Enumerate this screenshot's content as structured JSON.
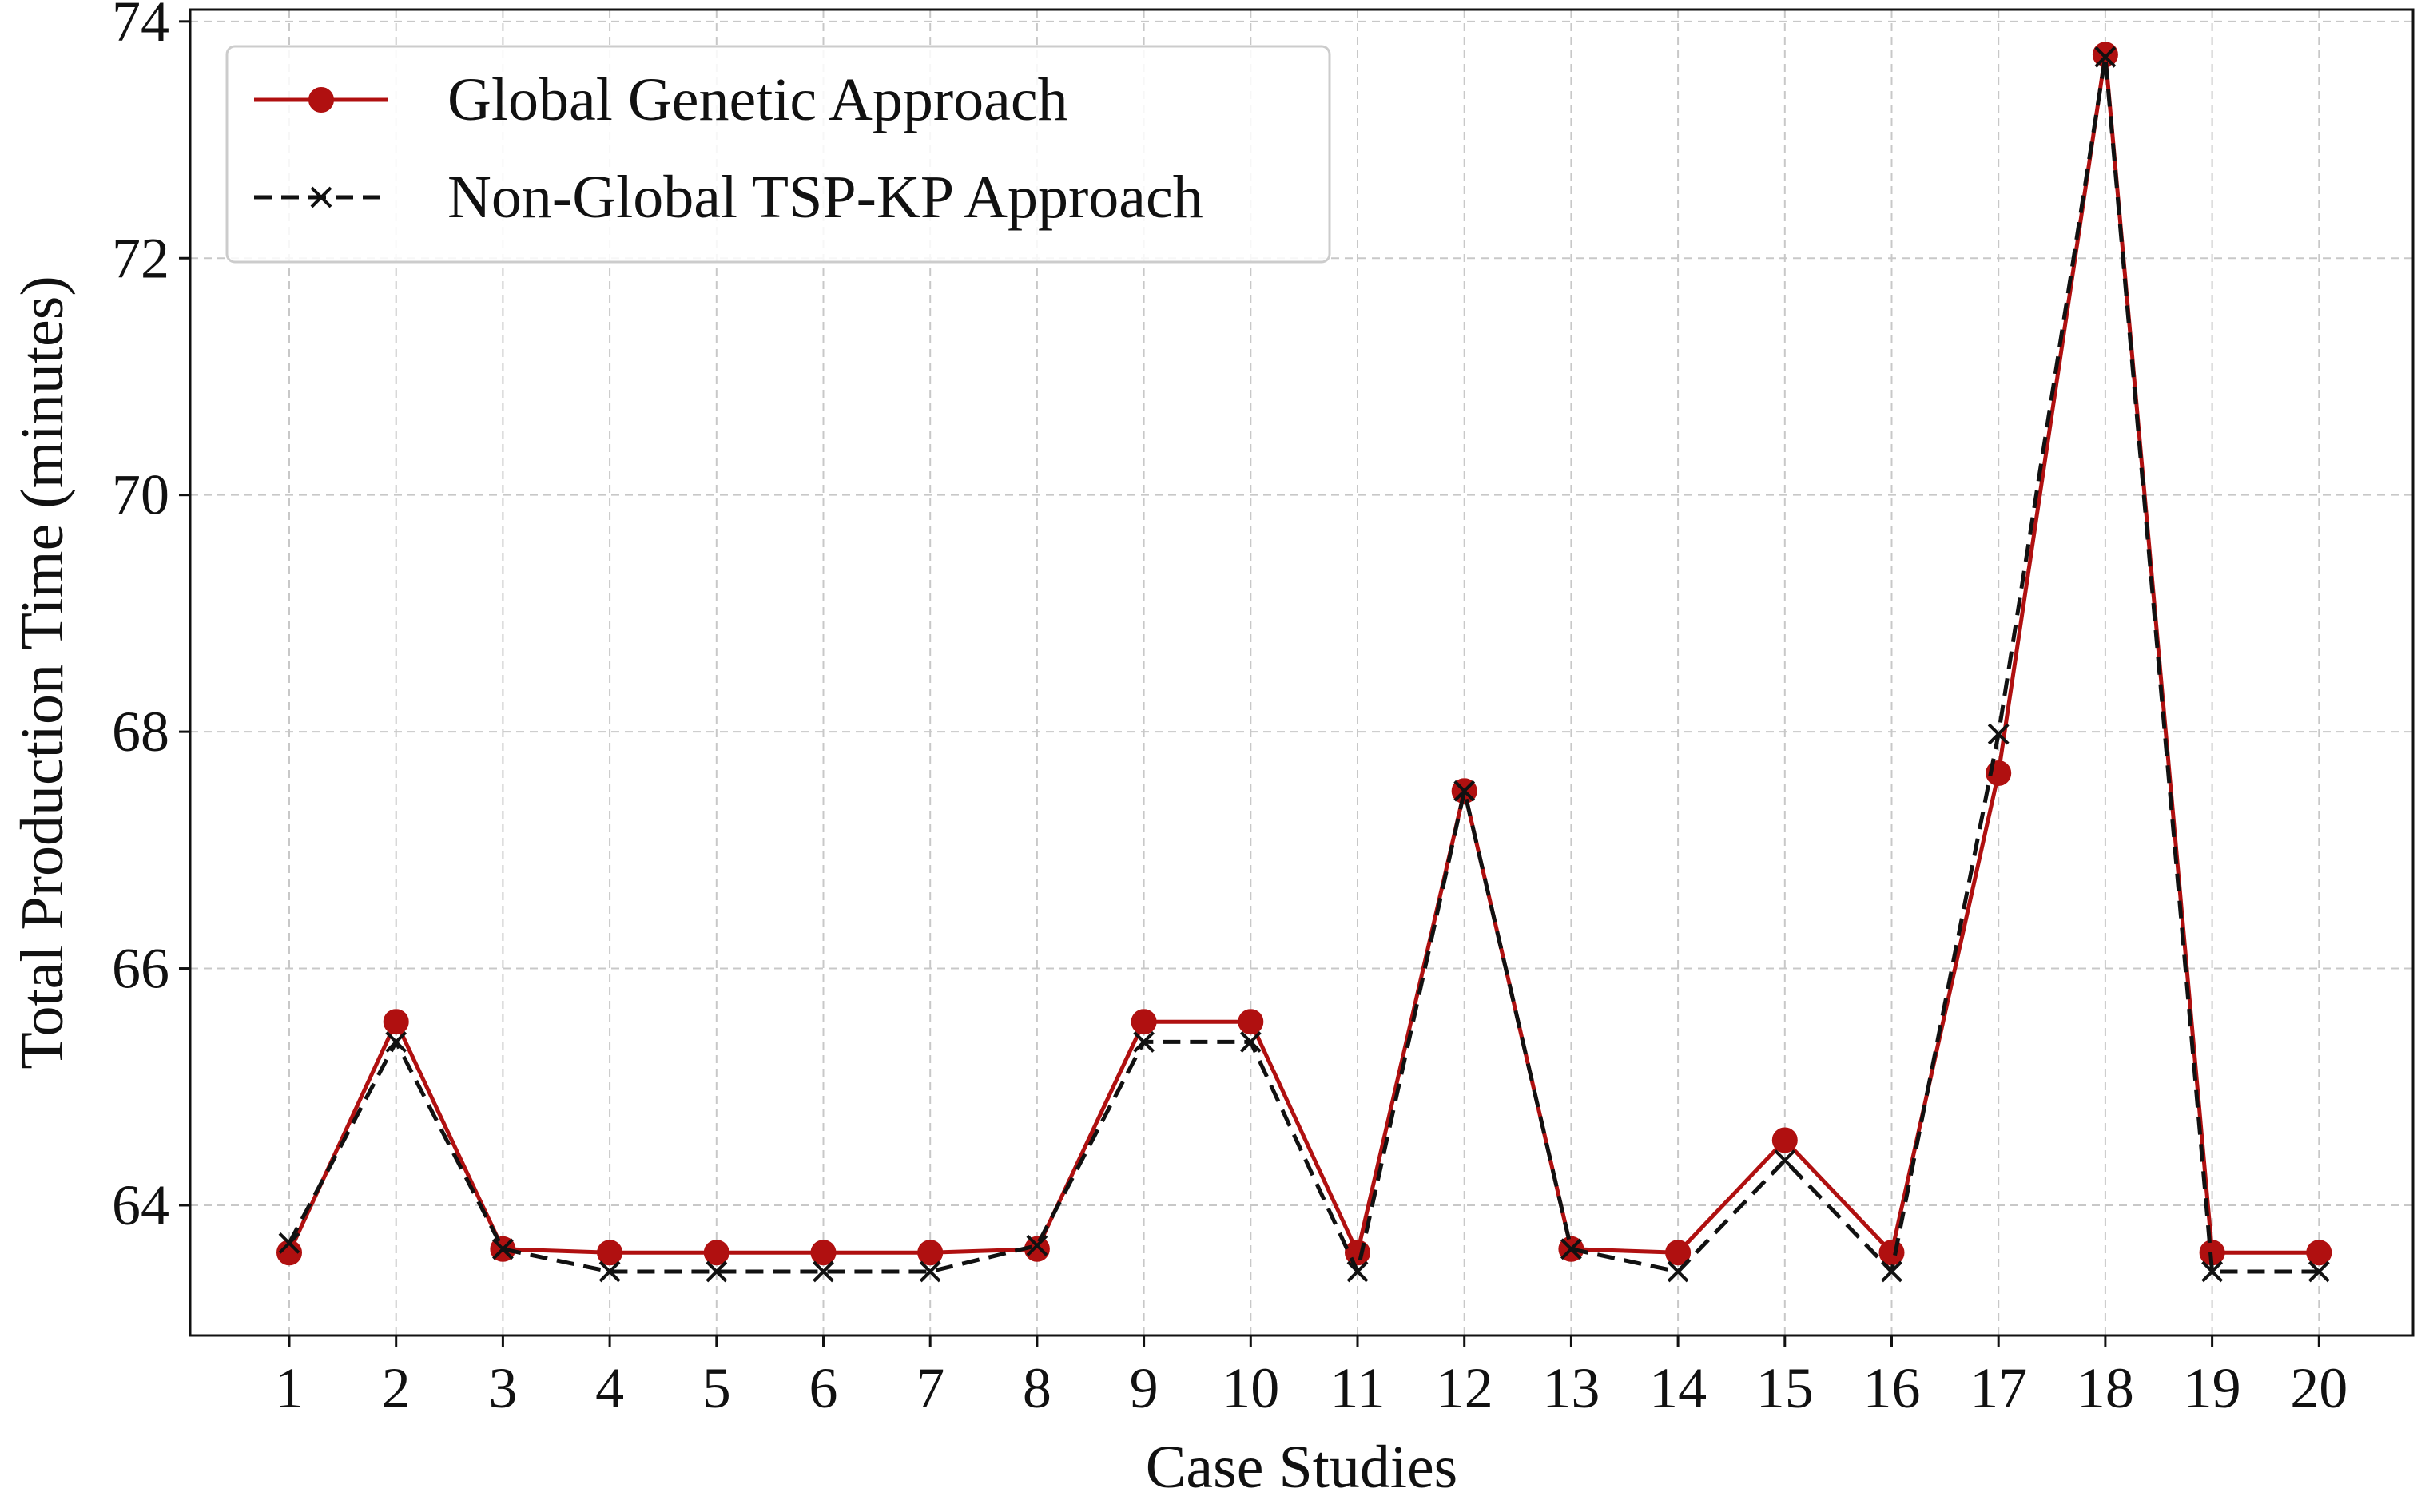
{
  "chart_data": {
    "type": "line",
    "title": "",
    "xlabel": "Case Studies",
    "ylabel": "Total Production Time (minutes)",
    "categories": [
      1,
      2,
      3,
      4,
      5,
      6,
      7,
      8,
      9,
      10,
      11,
      12,
      13,
      14,
      15,
      16,
      17,
      18,
      19,
      20
    ],
    "ylim": [
      62.9,
      74.1
    ],
    "yticks": [
      64,
      66,
      68,
      70,
      72,
      74
    ],
    "grid": true,
    "legend_position": "top-left",
    "series": [
      {
        "name": "Global Genetic Approach",
        "color": "#b01010",
        "line_style": "solid",
        "marker": "circle",
        "values": [
          63.6,
          65.55,
          63.63,
          63.6,
          63.6,
          63.6,
          63.6,
          63.63,
          65.55,
          65.55,
          63.6,
          67.5,
          63.63,
          63.6,
          64.55,
          63.6,
          67.65,
          73.72,
          63.6,
          63.6
        ]
      },
      {
        "name": "Non-Global TSP-KP Approach",
        "color": "#111111",
        "line_style": "dashed",
        "marker": "x",
        "values": [
          63.68,
          65.38,
          63.63,
          63.44,
          63.44,
          63.44,
          63.44,
          63.66,
          65.38,
          65.38,
          63.44,
          67.5,
          63.63,
          63.44,
          64.38,
          63.44,
          67.98,
          73.7,
          63.44,
          63.44
        ]
      }
    ]
  }
}
